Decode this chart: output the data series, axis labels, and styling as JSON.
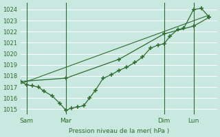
{
  "bg_color": "#c8e8e0",
  "grid_color": "#ffffff",
  "line_color": "#2d6a2d",
  "xlabel": "Pression niveau de la mer( hPa )",
  "ylim": [
    1014.5,
    1024.6
  ],
  "xlim": [
    0,
    10
  ],
  "yticks": [
    1015,
    1016,
    1017,
    1018,
    1019,
    1020,
    1021,
    1022,
    1023,
    1024
  ],
  "day_labels": [
    "Sam",
    "Mar",
    "Dim",
    "Lun"
  ],
  "day_positions": [
    0.3,
    2.3,
    7.3,
    8.8
  ],
  "vline_positions": [
    0.3,
    2.3,
    7.3,
    8.8
  ],
  "line1_x": [
    0.0,
    0.3,
    0.6,
    0.9,
    1.2,
    1.6,
    2.0,
    2.3,
    2.6,
    2.9,
    3.2,
    3.5,
    3.8,
    4.2,
    4.6,
    5.0,
    5.4,
    5.8,
    6.2,
    6.6,
    7.0,
    7.3,
    7.6,
    8.0,
    8.3,
    8.8,
    9.2,
    9.6
  ],
  "line1_y": [
    1017.5,
    1017.2,
    1017.1,
    1017.0,
    1016.6,
    1016.2,
    1015.5,
    1014.9,
    1015.1,
    1015.2,
    1015.3,
    1016.0,
    1016.7,
    1017.8,
    1018.1,
    1018.5,
    1018.8,
    1019.2,
    1019.7,
    1020.5,
    1020.8,
    1020.9,
    1021.6,
    1022.2,
    1022.3,
    1024.0,
    1024.1,
    1023.3
  ],
  "line2_x": [
    0.0,
    2.3,
    5.0,
    7.3,
    8.8,
    9.6
  ],
  "line2_y": [
    1017.5,
    1017.8,
    1019.5,
    1021.8,
    1022.5,
    1023.3
  ],
  "trend_x": [
    0.0,
    9.6
  ],
  "trend_y": [
    1017.3,
    1023.5
  ],
  "xlabel_fontsize": 6.5,
  "ylabel_fontsize": 6.0,
  "xtick_fontsize": 6.5
}
